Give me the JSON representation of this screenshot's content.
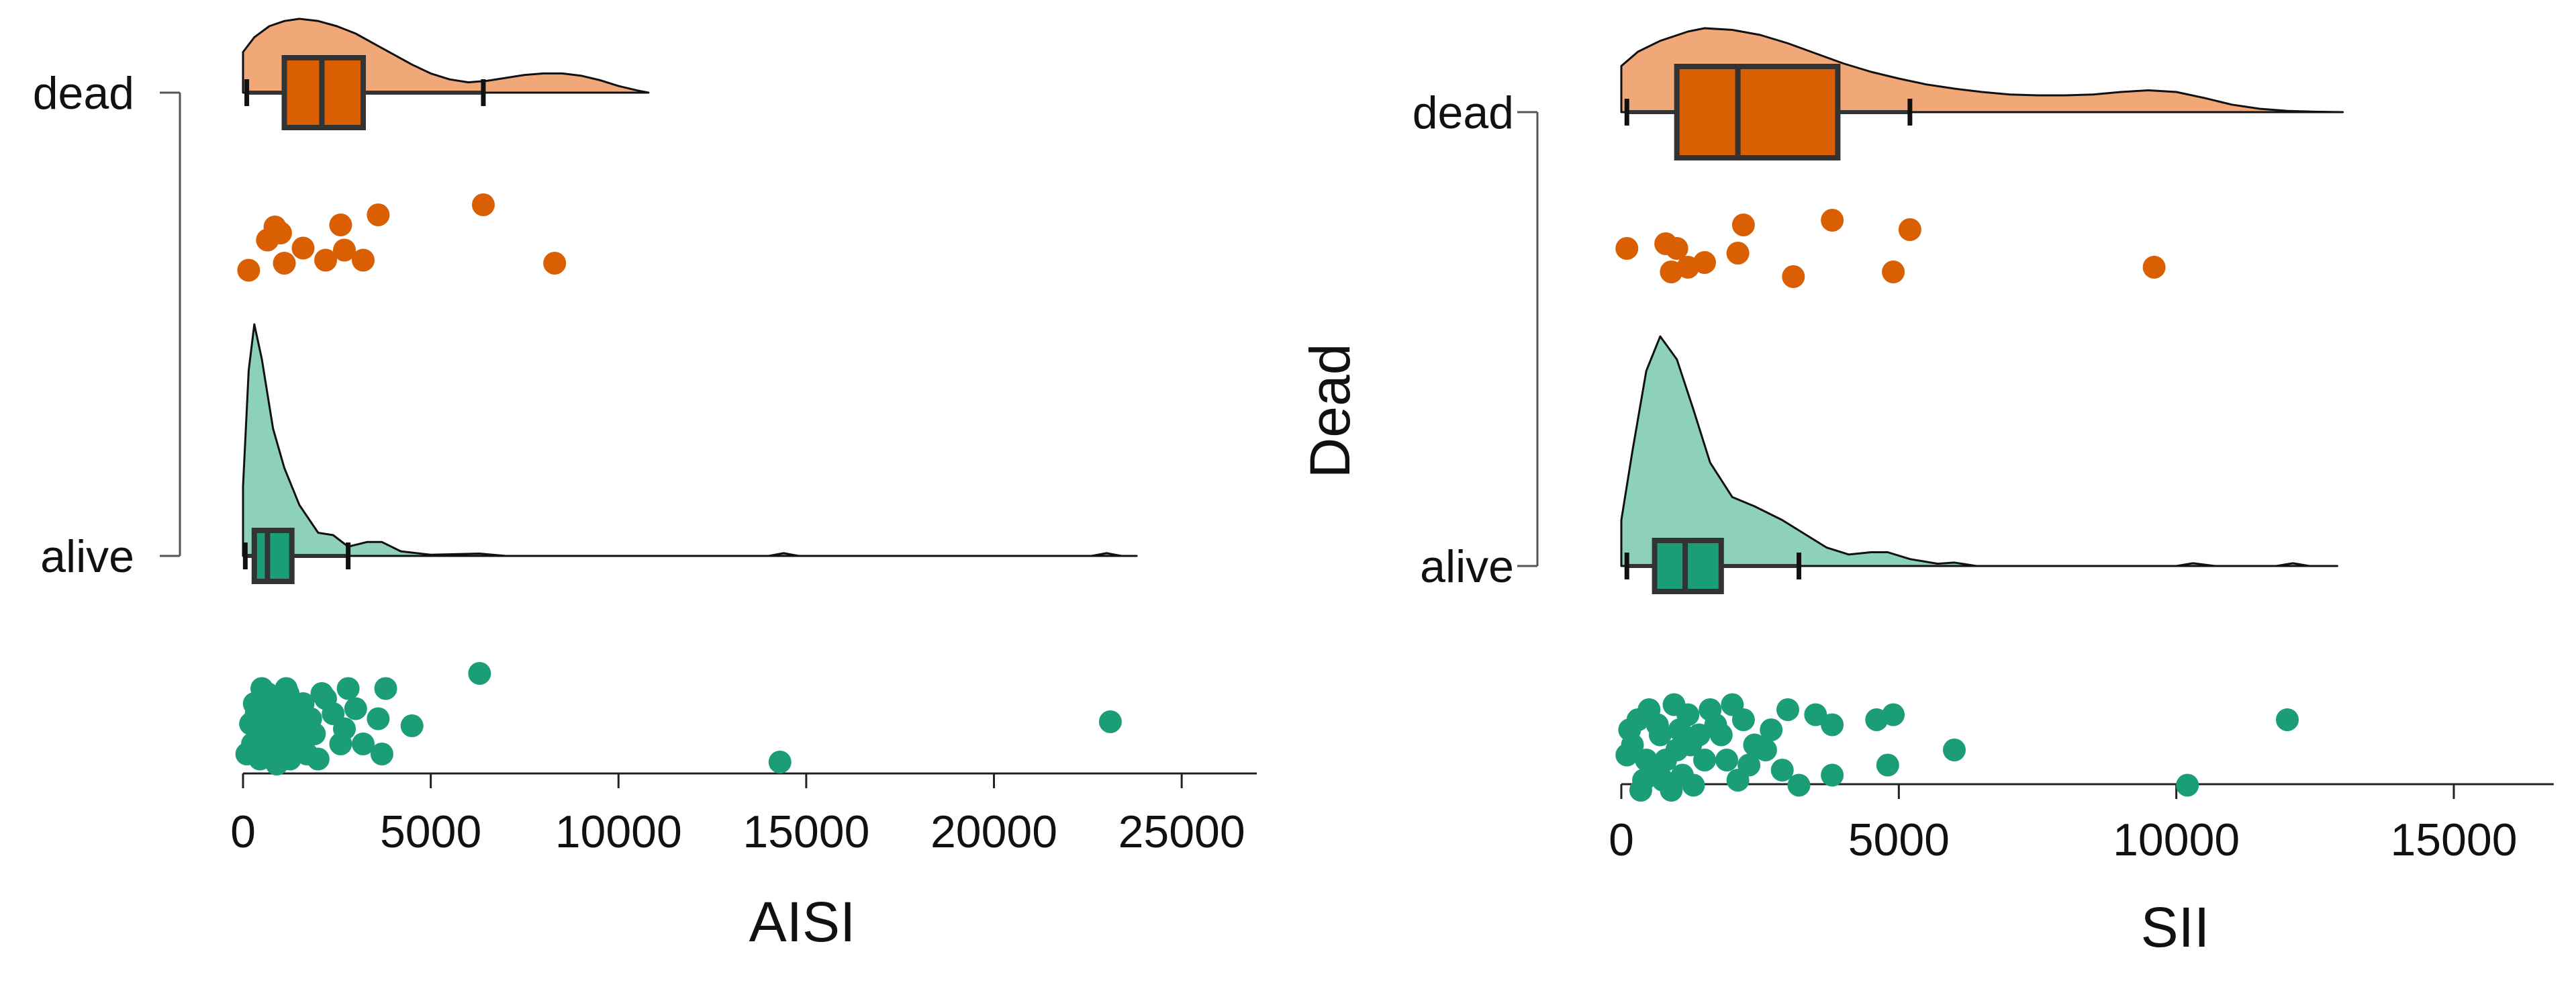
{
  "chart_data": [
    {
      "type": "raincloud",
      "xlabel": "AISI",
      "ylabel": "",
      "xlim": [
        0,
        27000
      ],
      "xticks": [
        0,
        5000,
        10000,
        15000,
        20000,
        25000
      ],
      "xtick_labels": [
        "0",
        "5000",
        "10000",
        "15000",
        "20000",
        "25000"
      ],
      "categories": [
        "dead",
        "alive"
      ],
      "groups": [
        {
          "label": "dead",
          "color": "#D95F02",
          "density_color": "#F0A878",
          "box": {
            "whisker_low": 100,
            "q1": 1100,
            "median": 2100,
            "q3": 3200,
            "whisker_high": 6400
          },
          "density": [
            [
              0,
              0.55
            ],
            [
              300,
              0.75
            ],
            [
              700,
              0.9
            ],
            [
              1100,
              0.97
            ],
            [
              1500,
              1.0
            ],
            [
              2000,
              0.97
            ],
            [
              2500,
              0.9
            ],
            [
              3000,
              0.8
            ],
            [
              3500,
              0.66
            ],
            [
              4000,
              0.52
            ],
            [
              4500,
              0.38
            ],
            [
              5000,
              0.26
            ],
            [
              5500,
              0.18
            ],
            [
              6000,
              0.14
            ],
            [
              6500,
              0.16
            ],
            [
              7000,
              0.2
            ],
            [
              7500,
              0.24
            ],
            [
              8000,
              0.26
            ],
            [
              8500,
              0.26
            ],
            [
              9000,
              0.23
            ],
            [
              9500,
              0.17
            ],
            [
              10000,
              0.09
            ],
            [
              10500,
              0.03
            ],
            [
              10800,
              0.0
            ]
          ],
          "points": [
            [
              150,
              0.55
            ],
            [
              1100,
              0.48
            ],
            [
              650,
              0.25
            ],
            [
              850,
              0.12
            ],
            [
              1000,
              0.18
            ],
            [
              1600,
              0.33
            ],
            [
              2200,
              0.45
            ],
            [
              2700,
              0.35
            ],
            [
              3200,
              0.45
            ],
            [
              2600,
              0.1
            ],
            [
              3600,
              0.0
            ],
            [
              6400,
              -0.1
            ],
            [
              8300,
              0.48
            ]
          ]
        },
        {
          "label": "alive",
          "color": "#1B9E77",
          "density_color": "#8DD0BC",
          "box": {
            "whisker_low": 60,
            "q1": 300,
            "median": 650,
            "q3": 1300,
            "whisker_high": 2800
          },
          "density": [
            [
              0,
              0.3
            ],
            [
              150,
              0.8
            ],
            [
              300,
              1.0
            ],
            [
              500,
              0.85
            ],
            [
              800,
              0.55
            ],
            [
              1100,
              0.38
            ],
            [
              1500,
              0.22
            ],
            [
              2000,
              0.1
            ],
            [
              2400,
              0.09
            ],
            [
              2800,
              0.04
            ],
            [
              3300,
              0.06
            ],
            [
              3700,
              0.06
            ],
            [
              4200,
              0.02
            ],
            [
              5000,
              0.005
            ],
            [
              6300,
              0.01
            ],
            [
              7000,
              0.0
            ],
            [
              14000,
              0.0
            ],
            [
              14400,
              0.012
            ],
            [
              14800,
              0.0
            ],
            [
              22600,
              0.0
            ],
            [
              23000,
              0.012
            ],
            [
              23400,
              0.0
            ],
            [
              23800,
              0.0
            ]
          ],
          "points": [
            [
              14300,
              0.78
            ],
            [
              23100,
              0.38
            ],
            [
              6300,
              -0.1
            ],
            [
              4500,
              0.42
            ],
            [
              3700,
              0.7
            ],
            [
              3800,
              0.05
            ],
            [
              2800,
              0.05
            ],
            [
              2200,
              0.15
            ],
            [
              3200,
              0.6
            ],
            [
              2600,
              0.6
            ],
            [
              100,
              0.7
            ],
            [
              400,
              0.5
            ],
            [
              700,
              0.3
            ],
            [
              900,
              0.8
            ],
            [
              1200,
              0.1
            ],
            [
              1500,
              0.55
            ],
            [
              1800,
              0.35
            ],
            [
              2000,
              0.75
            ],
            [
              300,
              0.2
            ],
            [
              600,
              0.65
            ],
            [
              1000,
              0.45
            ],
            [
              1300,
              0.25
            ],
            [
              1700,
              0.7
            ],
            [
              2400,
              0.3
            ],
            [
              3000,
              0.25
            ],
            [
              3600,
              0.35
            ],
            [
              500,
              0.05
            ],
            [
              800,
              0.15
            ],
            [
              1100,
              0.6
            ],
            [
              1400,
              0.4
            ],
            [
              200,
              0.4
            ],
            [
              450,
              0.75
            ],
            [
              750,
              0.55
            ],
            [
              1050,
              0.3
            ],
            [
              1900,
              0.5
            ],
            [
              2100,
              0.1
            ],
            [
              2700,
              0.45
            ],
            [
              350,
              0.3
            ],
            [
              650,
              0.1
            ],
            [
              950,
              0.65
            ],
            [
              1250,
              0.75
            ],
            [
              1600,
              0.2
            ],
            [
              250,
              0.6
            ],
            [
              550,
              0.35
            ],
            [
              850,
              0.45
            ],
            [
              1150,
              0.05
            ]
          ]
        }
      ]
    },
    {
      "type": "raincloud",
      "xlabel": "SII",
      "ylabel": "Dead",
      "xlim": [
        0,
        16800
      ],
      "xticks": [
        0,
        5000,
        10000,
        15000
      ],
      "xtick_labels": [
        "0",
        "5000",
        "10000",
        "15000"
      ],
      "categories": [
        "dead",
        "alive"
      ],
      "groups": [
        {
          "label": "dead",
          "color": "#D95F02",
          "density_color": "#F0A878",
          "box": {
            "whisker_low": 100,
            "q1": 1000,
            "median": 2100,
            "q3": 3900,
            "whisker_high": 5200
          },
          "density": [
            [
              0,
              0.55
            ],
            [
              300,
              0.72
            ],
            [
              700,
              0.85
            ],
            [
              1200,
              0.96
            ],
            [
              1500,
              1.0
            ],
            [
              2000,
              0.98
            ],
            [
              2500,
              0.92
            ],
            [
              3000,
              0.82
            ],
            [
              3500,
              0.7
            ],
            [
              4000,
              0.58
            ],
            [
              4500,
              0.48
            ],
            [
              5000,
              0.4
            ],
            [
              5500,
              0.33
            ],
            [
              6000,
              0.28
            ],
            [
              6500,
              0.24
            ],
            [
              7000,
              0.21
            ],
            [
              7500,
              0.2
            ],
            [
              8000,
              0.2
            ],
            [
              8500,
              0.21
            ],
            [
              9000,
              0.24
            ],
            [
              9500,
              0.26
            ],
            [
              10000,
              0.24
            ],
            [
              10500,
              0.17
            ],
            [
              11000,
              0.09
            ],
            [
              11500,
              0.04
            ],
            [
              12000,
              0.015
            ],
            [
              12500,
              0.005
            ],
            [
              13000,
              0.0
            ]
          ],
          "points": [
            [
              100,
              0.25
            ],
            [
              900,
              0.5
            ],
            [
              1000,
              0.25
            ],
            [
              1200,
              0.45
            ],
            [
              1500,
              0.4
            ],
            [
              800,
              0.2
            ],
            [
              2100,
              0.3
            ],
            [
              2200,
              0.0
            ],
            [
              3100,
              0.55
            ],
            [
              3800,
              -0.05
            ],
            [
              4900,
              0.5
            ],
            [
              5200,
              0.05
            ],
            [
              9600,
              0.45
            ]
          ]
        },
        {
          "label": "alive",
          "color": "#1B9E77",
          "density_color": "#8DD0BC",
          "box": {
            "whisker_low": 100,
            "q1": 600,
            "median": 1150,
            "q3": 1800,
            "whisker_high": 3200
          },
          "density": [
            [
              0,
              0.2
            ],
            [
              200,
              0.5
            ],
            [
              450,
              0.85
            ],
            [
              700,
              1.0
            ],
            [
              1000,
              0.9
            ],
            [
              1300,
              0.68
            ],
            [
              1600,
              0.45
            ],
            [
              2000,
              0.3
            ],
            [
              2400,
              0.26
            ],
            [
              2900,
              0.2
            ],
            [
              3300,
              0.14
            ],
            [
              3700,
              0.08
            ],
            [
              4100,
              0.05
            ],
            [
              4500,
              0.06
            ],
            [
              4800,
              0.06
            ],
            [
              5200,
              0.03
            ],
            [
              5700,
              0.01
            ],
            [
              6000,
              0.015
            ],
            [
              6400,
              0.0
            ],
            [
              10000,
              0.0
            ],
            [
              10300,
              0.012
            ],
            [
              10700,
              0.0
            ],
            [
              11800,
              0.0
            ],
            [
              12100,
              0.012
            ],
            [
              12400,
              0.0
            ],
            [
              12900,
              0.0
            ]
          ],
          "points": [
            [
              10200,
              0.85
            ],
            [
              12000,
              0.2
            ],
            [
              6000,
              0.5
            ],
            [
              4800,
              0.65
            ],
            [
              4900,
              0.15
            ],
            [
              4600,
              0.2
            ],
            [
              3800,
              0.75
            ],
            [
              3800,
              0.25
            ],
            [
              3200,
              0.85
            ],
            [
              3500,
              0.15
            ],
            [
              3000,
              0.1
            ],
            [
              2700,
              0.3
            ],
            [
              2300,
              0.65
            ],
            [
              2000,
              0.05
            ],
            [
              2600,
              0.5
            ],
            [
              100,
              0.55
            ],
            [
              400,
              0.8
            ],
            [
              700,
              0.35
            ],
            [
              900,
              0.9
            ],
            [
              1200,
              0.15
            ],
            [
              1500,
              0.6
            ],
            [
              1800,
              0.35
            ],
            [
              2100,
              0.8
            ],
            [
              300,
              0.2
            ],
            [
              600,
              0.7
            ],
            [
              1000,
              0.5
            ],
            [
              1300,
              0.85
            ],
            [
              1700,
              0.25
            ],
            [
              2400,
              0.45
            ],
            [
              200,
              0.45
            ],
            [
              500,
              0.1
            ],
            [
              800,
              0.6
            ],
            [
              1100,
              0.75
            ],
            [
              1400,
              0.35
            ],
            [
              1900,
              0.6
            ],
            [
              350,
              0.9
            ],
            [
              650,
              0.25
            ],
            [
              950,
              0.05
            ],
            [
              1250,
              0.45
            ],
            [
              1600,
              0.1
            ],
            [
              2200,
              0.2
            ],
            [
              150,
              0.3
            ],
            [
              450,
              0.6
            ],
            [
              750,
              0.8
            ],
            [
              1050,
              0.3
            ],
            [
              2900,
              0.7
            ]
          ]
        }
      ]
    }
  ]
}
